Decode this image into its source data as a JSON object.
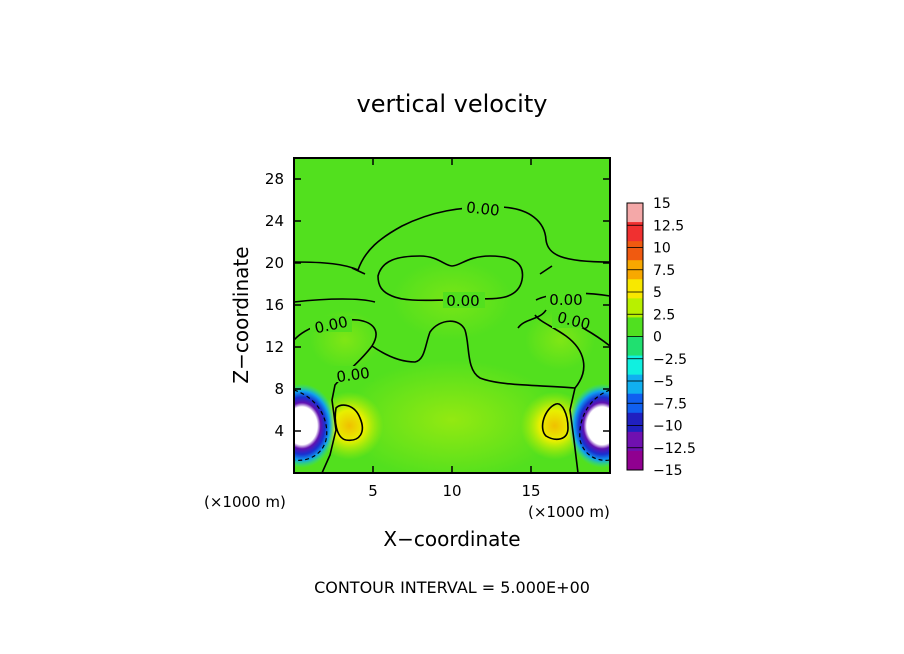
{
  "chart_data": {
    "type": "heatmap",
    "title": "vertical velocity",
    "xlabel": "X−coordinate",
    "ylabel": "Z−coordinate",
    "x_unit": "(×1000 m)",
    "y_unit": "(×1000 m)",
    "xlim": [
      0,
      20
    ],
    "ylim": [
      0,
      30
    ],
    "x_ticks": [
      5,
      10,
      15
    ],
    "y_ticks": [
      4,
      8,
      12,
      16,
      20,
      24,
      28
    ],
    "footer": "CONTOUR INTERVAL = 5.000E+00",
    "contour_interval": 5.0,
    "contour_labels": [
      "0.00",
      "0.00",
      "0.00",
      "0.00",
      "0.00",
      "0.00"
    ],
    "colorbar": {
      "levels": [
        15,
        12.5,
        10,
        7.5,
        5,
        2.5,
        0,
        -2.5,
        -5,
        -7.5,
        -10,
        -12.5,
        -15
      ],
      "level_labels": [
        "15",
        "12.5",
        "10",
        "7.5",
        "5",
        "2.5",
        "0",
        "−2.5",
        "−5",
        "−7.5",
        "−10",
        "−12.5",
        "−15"
      ],
      "colors": [
        "#f4a8a8",
        "#f03030",
        "#f05a10",
        "#f8a800",
        "#f8e800",
        "#b8f000",
        "#50e020",
        "#20e070",
        "#10f0e0",
        "#10b0f0",
        "#1060f0",
        "#2020c0",
        "#7010b0",
        "#900090"
      ]
    },
    "background_color": "#52e01e",
    "updraft_cores": [
      {
        "x": 3.5,
        "z": 4.5,
        "peak": 7.5
      },
      {
        "x": 16.5,
        "z": 4.5,
        "peak": 7.5
      }
    ],
    "downdraft_cores": [
      {
        "x": 0.5,
        "z": 4.5,
        "peak": -15
      },
      {
        "x": 19.5,
        "z": 4.5,
        "peak": -15
      }
    ]
  }
}
